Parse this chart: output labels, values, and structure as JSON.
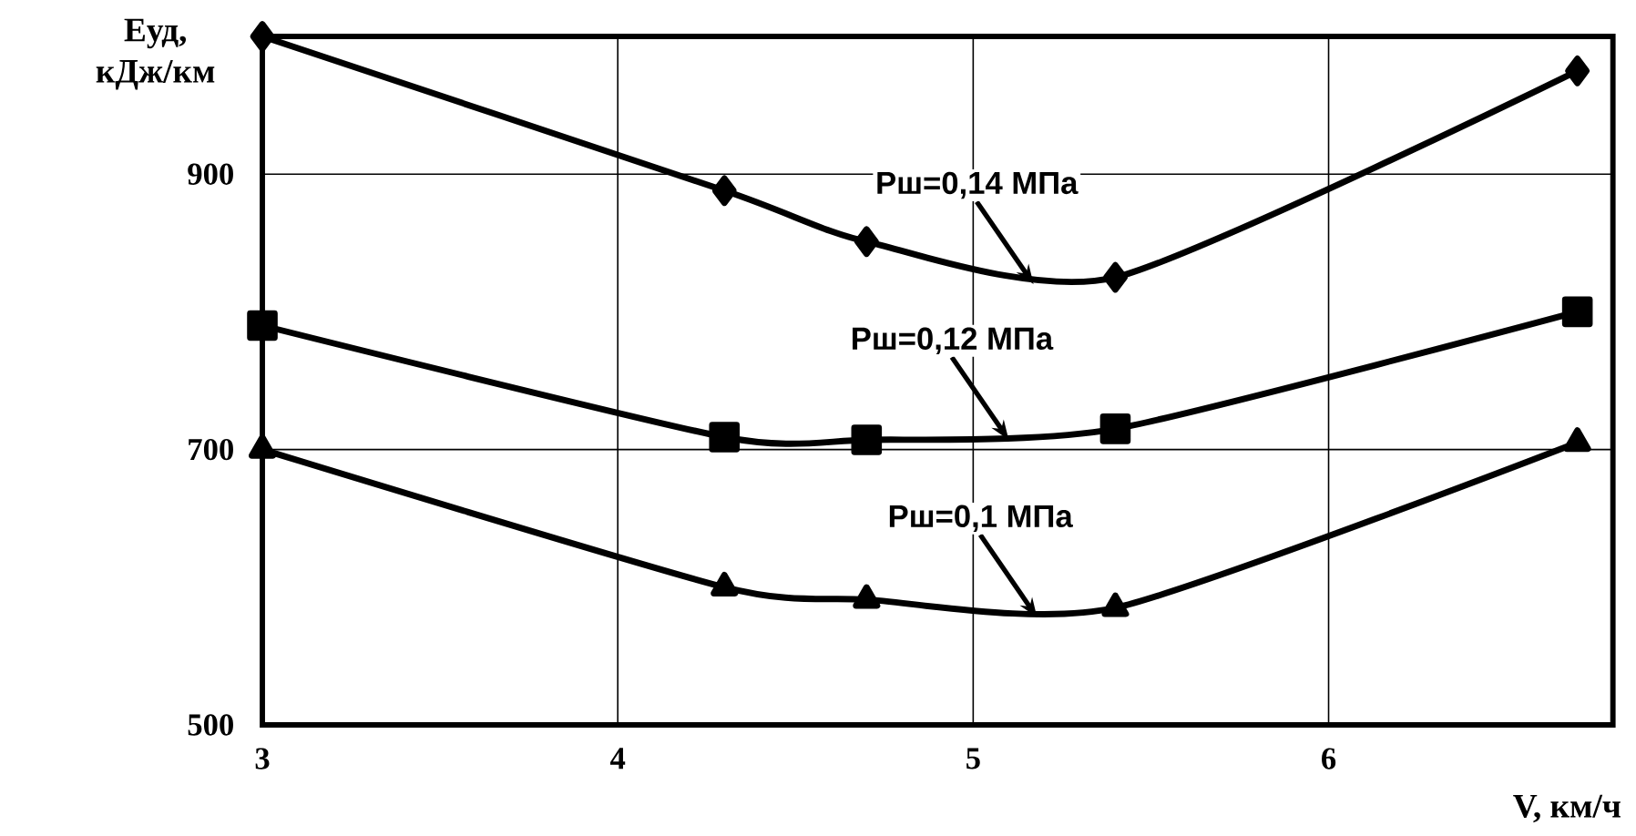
{
  "chart_data": {
    "type": "line",
    "xlabel": "V, км/ч",
    "ylabel": "Eуд, кДж/км",
    "xlim": [
      3,
      6.8
    ],
    "ylim": [
      500,
      1000
    ],
    "xticks": [
      3,
      4,
      5,
      6
    ],
    "yticks": [
      500,
      700,
      900
    ],
    "grid": true,
    "line_style": "solid",
    "series": [
      {
        "color": "#000000",
        "marker": "diamond",
        "x": [
          3,
          4.3,
          4.7,
          5.4,
          6.7
        ],
        "values": [
          1000,
          888,
          851,
          825,
          975
        ]
      },
      {
        "color": "#000000",
        "marker": "square",
        "x": [
          3,
          4.3,
          4.7,
          5.4,
          6.7
        ],
        "values": [
          790,
          709,
          707,
          715,
          800
        ]
      },
      {
        "color": "#000000",
        "marker": "triangle",
        "x": [
          3,
          4.3,
          4.7,
          5.4,
          6.7
        ],
        "values": [
          700,
          600,
          591,
          585,
          705
        ]
      }
    ],
    "annotations": [
      {
        "text": "Pш=0,14 МПа",
        "x": 5.17,
        "y": 820
      },
      {
        "text": "Pш=0,12 МПа",
        "x": 5.1,
        "y": 707
      },
      {
        "text": "Pш=0,1 МПа",
        "x": 5.18,
        "y": 578
      }
    ]
  }
}
